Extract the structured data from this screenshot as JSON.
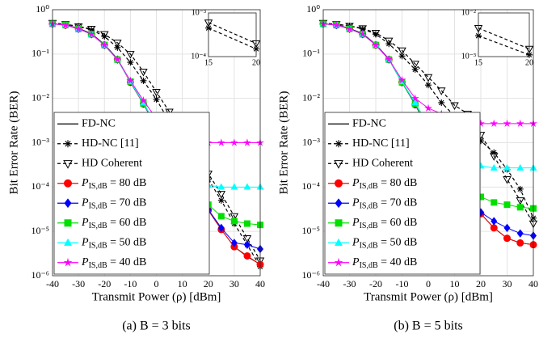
{
  "chart_data": [
    {
      "type": "line",
      "caption": "(a) B = 3 bits",
      "xlabel": "Transmit Power (ρ) [dBm]",
      "ylabel": "Bit Error Rate (BER)",
      "yscale": "log",
      "grid": true,
      "legend": "lower left",
      "xlim": [
        -40,
        40
      ],
      "xticks": [
        -40,
        -30,
        -20,
        -10,
        0,
        10,
        20,
        30,
        40
      ],
      "ylim": [
        1e-06,
        1
      ],
      "yticks": [
        {
          "value": 1e-06,
          "label": "10⁻⁶"
        },
        {
          "value": 1e-05,
          "label": "10⁻⁵"
        },
        {
          "value": 0.0001,
          "label": "10⁻⁴"
        },
        {
          "value": 0.001,
          "label": "10⁻³"
        },
        {
          "value": 0.01,
          "label": "10⁻²"
        },
        {
          "value": 0.1,
          "label": "10⁻¹"
        },
        {
          "value": 1,
          "label": "10⁰"
        }
      ],
      "x": [
        -40,
        -35,
        -30,
        -25,
        -20,
        -15,
        -10,
        -5,
        0,
        5,
        10,
        15,
        20,
        25,
        30,
        35,
        40
      ],
      "series": [
        {
          "name": "FD-NC",
          "color": "#000000",
          "marker": "none",
          "dash": "solid",
          "values": [
            0.48,
            0.46,
            0.38,
            0.29,
            0.165,
            0.078,
            0.024,
            0.0078,
            0.0022,
            0.0008,
            0.00025,
            9e-05,
            3e-05,
            1.1e-05,
            4.5e-06,
            2.7e-06,
            1.8e-06
          ]
        },
        {
          "name": "HD-NC [11]",
          "color": "#000000",
          "marker": "asterisk",
          "dash": "dashed",
          "values": [
            0.48,
            0.47,
            0.42,
            0.35,
            0.25,
            0.14,
            0.065,
            0.025,
            0.0095,
            0.003,
            0.001,
            0.00045,
            0.00015,
            5e-05,
            1.5e-05,
            5e-06,
            1.6e-06
          ]
        },
        {
          "name": "HD Coherent",
          "color": "#000000",
          "marker": "triangle-down",
          "dash": "dashed",
          "values": [
            0.5,
            0.47,
            0.42,
            0.37,
            0.28,
            0.18,
            0.1,
            0.04,
            0.014,
            0.005,
            0.0017,
            0.0006,
            0.0002,
            7e-05,
            2.2e-05,
            7e-06,
            2.2e-06
          ]
        },
        {
          "name": "PIS,dB = 80 dB",
          "color": "#ff0000",
          "marker": "circle",
          "dash": "solid",
          "values": [
            0.48,
            0.45,
            0.37,
            0.28,
            0.16,
            0.075,
            0.023,
            0.0075,
            0.0022,
            0.0008,
            0.00025,
            9e-05,
            3e-05,
            1.1e-05,
            4.5e-06,
            2.8e-06,
            1.8e-06
          ]
        },
        {
          "name": "PIS,dB = 70 dB",
          "color": "#0000ff",
          "marker": "diamond",
          "dash": "solid",
          "values": [
            0.48,
            0.45,
            0.37,
            0.28,
            0.16,
            0.075,
            0.024,
            0.0076,
            0.0022,
            0.0008,
            0.00026,
            9e-05,
            3.1e-05,
            1.2e-05,
            5.5e-06,
            5e-06,
            4e-06
          ]
        },
        {
          "name": "PIS,dB = 60 dB",
          "color": "#00e000",
          "marker": "square",
          "dash": "solid",
          "values": [
            0.48,
            0.45,
            0.37,
            0.28,
            0.16,
            0.075,
            0.024,
            0.0077,
            0.0023,
            0.0008,
            0.00027,
            0.0001,
            4e-05,
            2.2e-05,
            1.7e-05,
            1.5e-05,
            1.4e-05
          ]
        },
        {
          "name": "PIS,dB = 50 dB",
          "color": "#00ffff",
          "marker": "triangle-up",
          "dash": "solid",
          "values": [
            0.48,
            0.45,
            0.37,
            0.28,
            0.16,
            0.075,
            0.024,
            0.008,
            0.0025,
            0.00065,
            0.00028,
            0.00013,
            0.00011,
            0.0001,
            0.0001,
            0.0001,
            0.0001
          ]
        },
        {
          "name": "PIS,dB = 40 dB",
          "color": "#ff00ff",
          "marker": "star",
          "dash": "solid",
          "values": [
            0.48,
            0.45,
            0.37,
            0.28,
            0.16,
            0.076,
            0.025,
            0.009,
            0.0035,
            0.0019,
            0.0013,
            0.0011,
            0.001,
            0.001,
            0.001,
            0.001,
            0.001
          ]
        }
      ],
      "inset": {
        "xlim": [
          15,
          20
        ],
        "xticks": [
          15,
          20
        ],
        "ylim": [
          0.0001,
          0.001
        ],
        "yticks": [
          {
            "value": 0.0001,
            "label": "10⁻⁴"
          },
          {
            "value": 0.001,
            "label": "10⁻³"
          }
        ],
        "x": [
          15,
          20
        ],
        "series": [
          {
            "color": "#000000",
            "marker": "asterisk",
            "dash": "dashed",
            "values": [
              0.00045,
              0.00015
            ]
          },
          {
            "color": "#000000",
            "marker": "triangle-down",
            "dash": "dashed",
            "values": [
              0.0006,
              0.0002
            ]
          }
        ]
      }
    },
    {
      "type": "line",
      "caption": "(b) B = 5 bits",
      "xlabel": "Transmit Power (ρ) [dBm]",
      "ylabel": "Bit Error Rate (BER)",
      "yscale": "log",
      "grid": true,
      "legend": "lower left",
      "xlim": [
        -40,
        40
      ],
      "xticks": [
        -40,
        -30,
        -20,
        -10,
        0,
        10,
        20,
        30,
        40
      ],
      "ylim": [
        1e-06,
        1
      ],
      "yticks": [
        {
          "value": 1e-06,
          "label": "10⁻⁶"
        },
        {
          "value": 1e-05,
          "label": "10⁻⁵"
        },
        {
          "value": 0.0001,
          "label": "10⁻⁴"
        },
        {
          "value": 0.001,
          "label": "10⁻³"
        },
        {
          "value": 0.01,
          "label": "10⁻²"
        },
        {
          "value": 0.1,
          "label": "10⁻¹"
        },
        {
          "value": 1,
          "label": "10⁰"
        }
      ],
      "x": [
        -40,
        -35,
        -30,
        -25,
        -20,
        -15,
        -10,
        -5,
        0,
        5,
        10,
        15,
        20,
        25,
        30,
        35,
        40
      ],
      "series": [
        {
          "name": "FD-NC",
          "color": "#000000",
          "marker": "none",
          "dash": "solid",
          "values": [
            0.48,
            0.46,
            0.38,
            0.29,
            0.165,
            0.078,
            0.024,
            0.0075,
            0.002,
            0.0007,
            0.0002,
            7e-05,
            2.5e-05,
            1.2e-05,
            7e-06,
            5.5e-06,
            5e-06
          ]
        },
        {
          "name": "HD-NC [11]",
          "color": "#000000",
          "marker": "asterisk",
          "dash": "dashed",
          "values": [
            0.48,
            0.47,
            0.43,
            0.37,
            0.28,
            0.17,
            0.09,
            0.045,
            0.02,
            0.008,
            0.004,
            0.003,
            0.0011,
            0.0006,
            0.00025,
            9e-05,
            2e-05
          ]
        },
        {
          "name": "HD Coherent",
          "color": "#000000",
          "marker": "triangle-down",
          "dash": "dashed",
          "values": [
            0.5,
            0.47,
            0.43,
            0.38,
            0.3,
            0.2,
            0.12,
            0.06,
            0.03,
            0.015,
            0.007,
            0.0045,
            0.0015,
            0.0005,
            0.00015,
            5e-05,
            1.5e-05
          ]
        },
        {
          "name": "PIS,dB = 80 dB",
          "color": "#ff0000",
          "marker": "circle",
          "dash": "solid",
          "values": [
            0.48,
            0.45,
            0.37,
            0.28,
            0.16,
            0.075,
            0.023,
            0.0072,
            0.002,
            0.0007,
            0.0002,
            7e-05,
            2.5e-05,
            1.2e-05,
            7e-06,
            5.5e-06,
            5e-06
          ]
        },
        {
          "name": "PIS,dB = 70 dB",
          "color": "#0000ff",
          "marker": "diamond",
          "dash": "solid",
          "values": [
            0.48,
            0.45,
            0.37,
            0.28,
            0.16,
            0.075,
            0.023,
            0.0073,
            0.002,
            0.0007,
            0.0002,
            7e-05,
            2.7e-05,
            1.7e-05,
            1.2e-05,
            9e-06,
            8e-06
          ]
        },
        {
          "name": "PIS,dB = 60 dB",
          "color": "#00e000",
          "marker": "square",
          "dash": "solid",
          "values": [
            0.48,
            0.45,
            0.37,
            0.28,
            0.16,
            0.075,
            0.023,
            0.0075,
            0.0021,
            0.00075,
            0.00024,
            0.0001,
            6e-05,
            4.5e-05,
            4e-05,
            3.5e-05,
            3.3e-05
          ]
        },
        {
          "name": "PIS,dB = 50 dB",
          "color": "#00ffff",
          "marker": "triangle-up",
          "dash": "solid",
          "values": [
            0.48,
            0.45,
            0.37,
            0.28,
            0.16,
            0.075,
            0.024,
            0.008,
            0.0025,
            0.0009,
            0.0005,
            0.00035,
            0.0003,
            0.00027,
            0.00027,
            0.00027,
            0.00027
          ]
        },
        {
          "name": "PIS,dB = 40 dB",
          "color": "#ff00ff",
          "marker": "star",
          "dash": "solid",
          "values": [
            0.48,
            0.45,
            0.37,
            0.28,
            0.16,
            0.076,
            0.026,
            0.01,
            0.006,
            0.0045,
            0.0033,
            0.003,
            0.0027,
            0.0027,
            0.0027,
            0.0027,
            0.0027
          ]
        }
      ],
      "inset": {
        "xlim": [
          15,
          20
        ],
        "xticks": [
          15,
          20
        ],
        "ylim": [
          0.001,
          0.01
        ],
        "yticks": [
          {
            "value": 0.001,
            "label": "10⁻³"
          },
          {
            "value": 0.01,
            "label": "10⁻²"
          }
        ],
        "x": [
          15,
          20
        ],
        "series": [
          {
            "color": "#000000",
            "marker": "asterisk",
            "dash": "dashed",
            "values": [
              0.003,
              0.0011
            ]
          },
          {
            "color": "#000000",
            "marker": "triangle-down",
            "dash": "dashed",
            "values": [
              0.0045,
              0.0015
            ]
          }
        ]
      }
    }
  ]
}
